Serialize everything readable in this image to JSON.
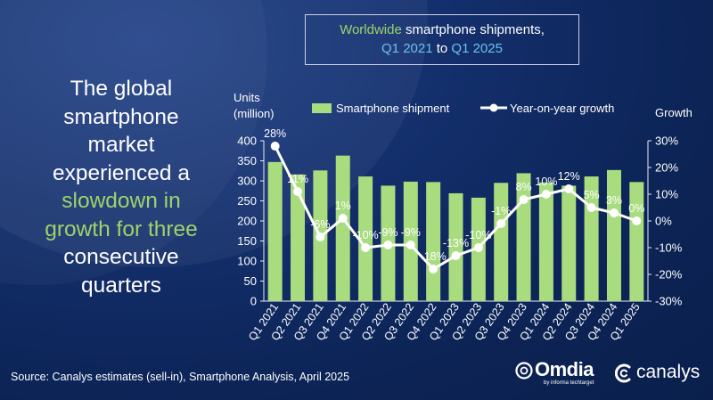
{
  "headline": {
    "line1": "The global",
    "line2": "smartphone",
    "line3": "market",
    "line4": "experienced a",
    "line5_highlight": "slowdown in",
    "line6_highlight": "growth for three",
    "line7": "consecutive",
    "line8": "quarters"
  },
  "title": {
    "part1": "Worldwide",
    "part2": " smartphone shipments,",
    "part3": "Q1 2021",
    "part4": " to ",
    "part5": "Q1 2025"
  },
  "legend": {
    "bar_label": "Smartphone shipment",
    "line_label": "Year-on-year growth",
    "position": "top"
  },
  "colors": {
    "bar": "#a9dc7e",
    "line": "#ffffff",
    "text": "#ffffff",
    "highlight_green": "#9fd36a",
    "highlight_blue": "#6cc0ef"
  },
  "chart_data": {
    "type": "bar",
    "categories": [
      "Q1 2021",
      "Q2 2021",
      "Q3 2021",
      "Q4 2021",
      "Q1 2022",
      "Q2 2022",
      "Q3 2022",
      "Q4 2022",
      "Q1 2023",
      "Q2 2023",
      "Q3 2023",
      "Q4 2023",
      "Q1 2024",
      "Q2 2024",
      "Q3 2024",
      "Q4 2024",
      "Q1 2025"
    ],
    "series": [
      {
        "name": "Smartphone shipment",
        "type": "bar",
        "axis": "left",
        "values": [
          347,
          316,
          326,
          363,
          311,
          288,
          298,
          297,
          269,
          258,
          295,
          319,
          296,
          288,
          311,
          327,
          297
        ]
      },
      {
        "name": "Year-on-year growth",
        "type": "line",
        "axis": "right",
        "values": [
          28,
          11,
          -6,
          1,
          -10,
          -9,
          -9,
          -18,
          -13,
          -10,
          -1,
          8,
          10,
          12,
          5,
          3,
          0
        ],
        "labels": [
          "28%",
          "11%",
          "-6%",
          "1%",
          "-10%",
          "-9%",
          "-9%",
          "-18%",
          "-13%",
          "-10%",
          "-1%",
          "8%",
          "10%",
          "12%",
          "5%",
          "3%",
          "0%"
        ]
      }
    ],
    "ylabel_left_line1": "Units",
    "ylabel_left_line2": "(million)",
    "ylabel_right": "Growth",
    "ylim_left": [
      0,
      400
    ],
    "ylim_right": [
      -30,
      30
    ],
    "yticks_left": [
      "0",
      "50",
      "100",
      "150",
      "200",
      "250",
      "300",
      "350",
      "400"
    ],
    "yticks_right": [
      "-30%",
      "-20%",
      "-10%",
      "0%",
      "10%",
      "20%",
      "30%"
    ],
    "grid": false
  },
  "footer": {
    "source": "Source: Canalys estimates (sell-in), Smartphone Analysis, April 2025",
    "omdia_word": "Omdia",
    "omdia_sub": "by informa techtarget",
    "canalys_word": "canalys"
  }
}
